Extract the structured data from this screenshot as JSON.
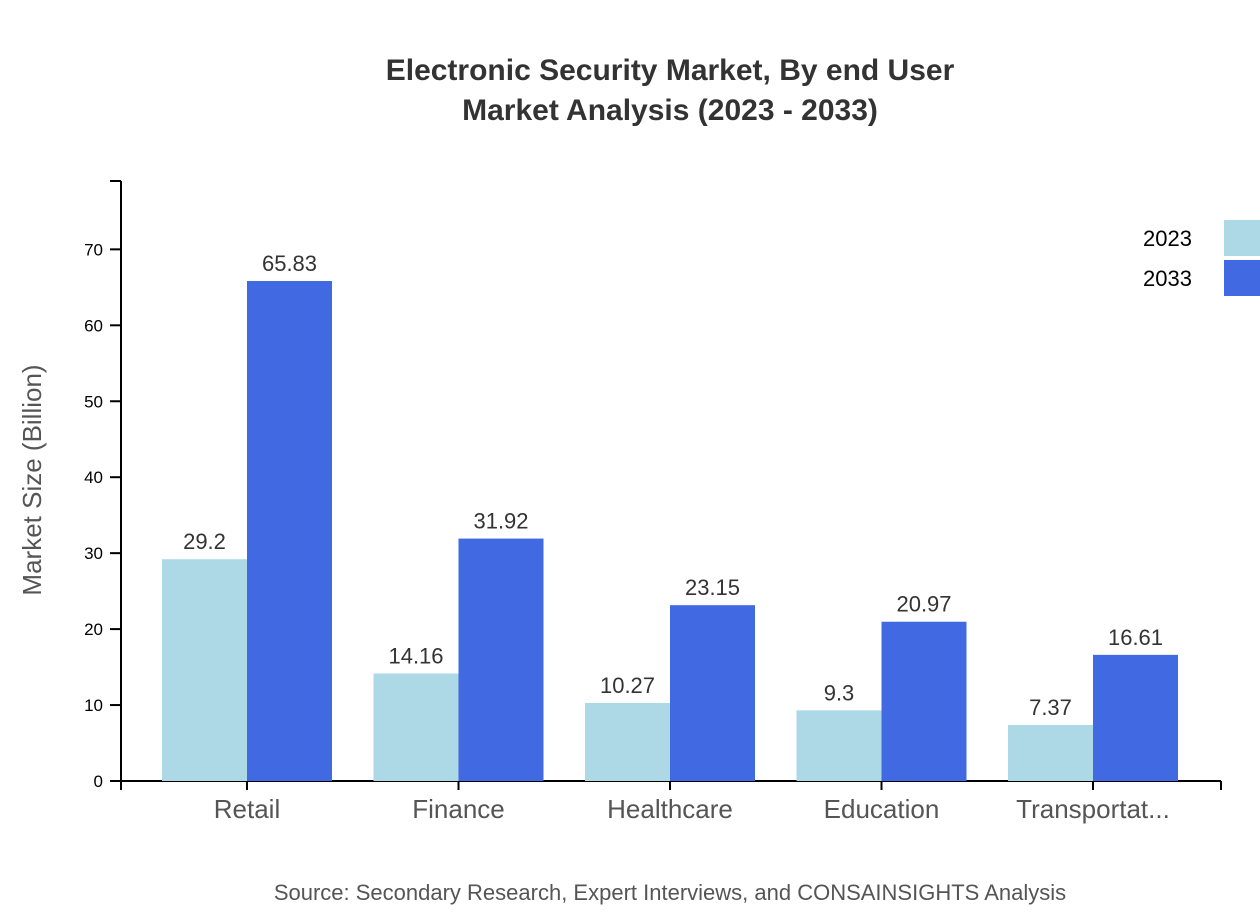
{
  "chart_data": {
    "type": "bar",
    "title": [
      "Electronic Security Market, By end User",
      "Market Analysis (2023 - 2033)"
    ],
    "xlabel": "",
    "ylabel": "Market Size (Billion)",
    "categories": [
      "Retail",
      "Finance",
      "Healthcare",
      "Education",
      "Transportat..."
    ],
    "series": [
      {
        "name": "2023",
        "color": "#add8e6",
        "values": [
          29.2,
          14.16,
          10.27,
          9.3,
          7.37
        ]
      },
      {
        "name": "2033",
        "color": "#4169e1",
        "values": [
          65.83,
          31.92,
          23.15,
          20.97,
          16.61
        ]
      }
    ],
    "ylim": [
      0,
      79
    ],
    "yticks": [
      0,
      10,
      20,
      30,
      40,
      50,
      60,
      70
    ],
    "grid": false,
    "legend": "top-right",
    "source": "Source: Secondary Research, Expert Interviews, and CONSAINSIGHTS Analysis"
  }
}
